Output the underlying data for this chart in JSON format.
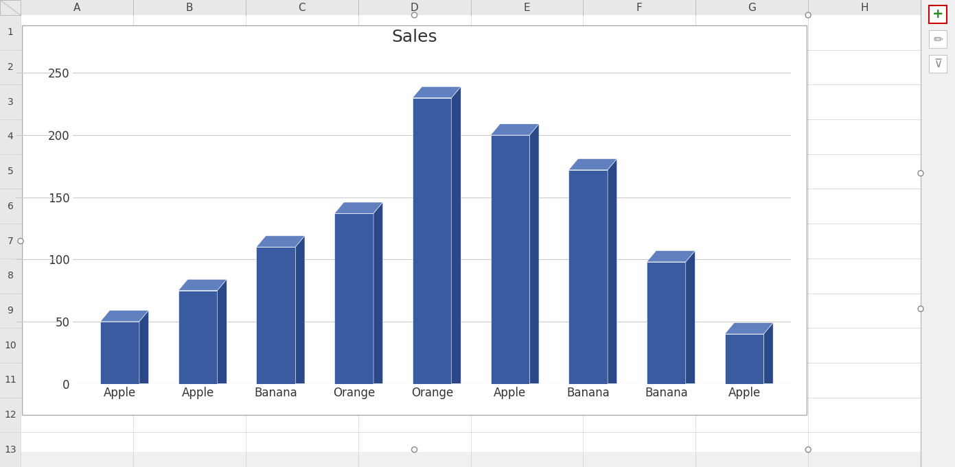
{
  "title": "Sales",
  "categories": [
    "Apple",
    "Apple",
    "Banana",
    "Orange",
    "Orange",
    "Apple",
    "Banana",
    "Banana",
    "Apple"
  ],
  "values": [
    50,
    75,
    110,
    137,
    230,
    200,
    172,
    98,
    40
  ],
  "bar_color_front": "#3A5BA0",
  "bar_color_top": "#6080C0",
  "bar_color_side": "#2A4888",
  "plot_bg_color": "#FFFFFF",
  "grid_color": "#C8C8C8",
  "title_fontsize": 18,
  "tick_fontsize": 12,
  "xlabel_fontsize": 12,
  "ylim": [
    0,
    260
  ],
  "yticks": [
    0,
    50,
    100,
    150,
    200,
    250
  ],
  "col_headers": [
    "A",
    "B",
    "C",
    "D",
    "E",
    "F",
    "G",
    "H"
  ],
  "row_numbers": [
    "1",
    "2",
    "3",
    "4",
    "5",
    "6",
    "7",
    "8",
    "9",
    "10",
    "11",
    "12",
    "13"
  ],
  "excel_header_bg": "#E8E8E8",
  "excel_header_border": "#BBBBBB",
  "excel_bg": "#FFFFFF",
  "outer_bg": "#F0F0F0",
  "spreadsheet_line_color": "#D0D0D0",
  "chart_border_color": "#AAAAAA"
}
